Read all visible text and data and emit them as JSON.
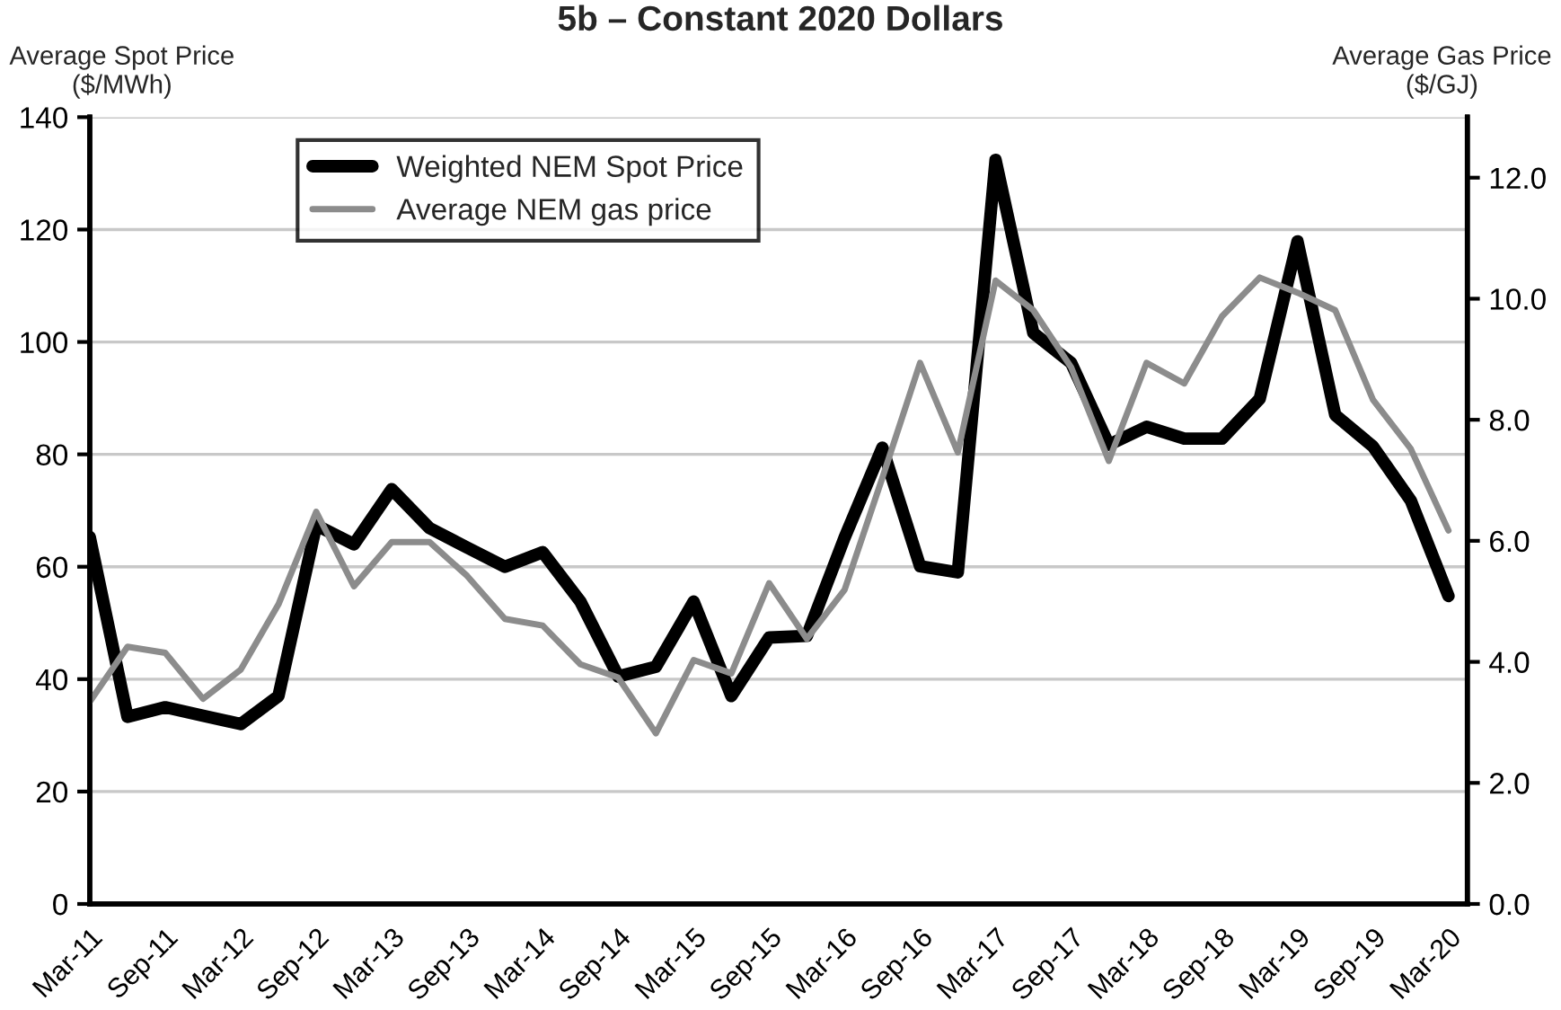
{
  "chart_data": {
    "type": "line",
    "title": "5b – Constant 2020 Dollars",
    "ylabel": "Average Spot Price\n($/MWh)",
    "y2label": "Average Gas Price\n($/GJ)",
    "categories": [
      "Mar-11",
      null,
      "Sep-11",
      null,
      "Mar-12",
      null,
      "Sep-12",
      null,
      "Mar-13",
      null,
      "Sep-13",
      null,
      "Mar-14",
      null,
      "Sep-14",
      null,
      "Mar-15",
      null,
      "Sep-15",
      null,
      "Mar-16",
      null,
      "Sep-16",
      null,
      "Mar-17",
      null,
      "Sep-17",
      null,
      "Mar-18",
      null,
      "Sep-18",
      null,
      "Mar-19",
      null,
      "Sep-19",
      null,
      "Mar-20"
    ],
    "series": [
      {
        "name": "Weighted NEM Spot Price",
        "color": "#000000",
        "values": [
          65.3,
          33.3,
          35,
          33.5,
          32,
          37,
          67.4,
          64,
          73.8,
          66.9,
          63.4,
          60,
          62.6,
          53.8,
          40.5,
          42.2,
          53.8,
          37,
          47.4,
          47.7,
          65.2,
          81.2,
          60.1,
          59,
          132.4,
          101.6,
          96.3,
          81.7,
          84.9,
          82.8,
          82.8,
          89.9,
          117.9,
          87,
          81.4,
          71.8,
          54.8
        ]
      },
      {
        "name": "Average NEM gas price",
        "color": "#8c8c8c",
        "axis": "y2",
        "values": [
          3.34,
          4.25,
          4.15,
          3.39,
          3.87,
          4.95,
          6.48,
          5.25,
          5.98,
          5.98,
          5.42,
          4.71,
          4.6,
          3.96,
          3.74,
          2.82,
          4.03,
          3.81,
          5.3,
          4.38,
          5.19,
          7.04,
          8.94,
          7.46,
          10.3,
          9.81,
          8.87,
          7.32,
          8.94,
          8.6,
          9.71,
          10.35,
          10.1,
          9.81,
          8.33,
          7.52,
          6.17
        ]
      }
    ],
    "ylim": [
      0,
      140
    ],
    "yticks": [
      0,
      20,
      40,
      60,
      80,
      100,
      120,
      140
    ],
    "y2lim": [
      0,
      13
    ],
    "y2ticks": [
      {
        "value": 0,
        "label": "0.0"
      },
      {
        "value": 2,
        "label": "2.0"
      },
      {
        "value": 4,
        "label": "4.0"
      },
      {
        "value": 6,
        "label": "6.0"
      },
      {
        "value": 8,
        "label": "8.0"
      },
      {
        "value": 10,
        "label": "10.0"
      },
      {
        "value": 12,
        "label": "12.0"
      }
    ],
    "grid": "y",
    "legend": "top left",
    "marker": "none",
    "line_style": "solid"
  }
}
